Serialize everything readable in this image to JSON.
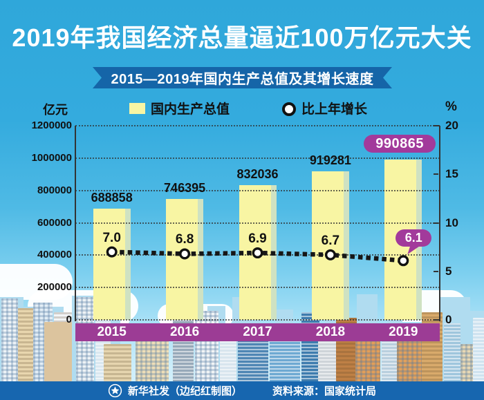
{
  "infographic": {
    "title": "2019年我国经济总量逼近100万亿元大关",
    "subtitle": "2015—2019年国内生产总值及其增长速度",
    "left_axis_unit": "亿元",
    "right_axis_unit": "%",
    "legend": {
      "gdp": "国内生产总值",
      "growth": "比上年增长"
    },
    "footer": {
      "credit": "新华社发（边纪红制图）",
      "source": "资料来源：国家统计局"
    }
  },
  "chart_data": {
    "type": "bar+line combo",
    "title": "2015—2019年国内生产总值及其增长速度",
    "categories": [
      "2015",
      "2016",
      "2017",
      "2018",
      "2019"
    ],
    "series": [
      {
        "name": "国内生产总值",
        "type": "bar",
        "axis": "left",
        "unit": "亿元",
        "values": [
          688858,
          746395,
          832036,
          919281,
          990865
        ],
        "labels": [
          "688858",
          "746395",
          "832036",
          "919281",
          "990865"
        ],
        "last_label_style": "magenta pill badge"
      },
      {
        "name": "比上年增长",
        "type": "line",
        "axis": "right",
        "unit": "%",
        "values": [
          7.0,
          6.8,
          6.9,
          6.7,
          6.1
        ],
        "labels": [
          "7.0",
          "6.8",
          "6.9",
          "6.7",
          "6.1"
        ],
        "last_label_style": "magenta speech bubble"
      }
    ],
    "left_axis": {
      "title": "亿元",
      "min": 0,
      "max": 1200000,
      "tick_step": 200000,
      "tick_labels": [
        "1200000",
        "1000000",
        "800000",
        "600000",
        "400000",
        "200000",
        "0"
      ]
    },
    "right_axis": {
      "title": "%",
      "min": 0,
      "max": 20,
      "tick_step": 5,
      "tick_labels": [
        "20",
        "15",
        "10",
        "5",
        "0"
      ]
    },
    "grid": "horizontal dotted lines at each left-axis tick",
    "legend_position": "top",
    "x_axis_style": "purple band with white year labels",
    "line_style": "thick black dashed line with white circle markers",
    "colors": {
      "bar_fill": "#f8f5a3",
      "bar_side_shade": "#cfe2c2",
      "line": "#171717",
      "marker_fill": "#ffffff",
      "badge_magenta": "#a23a9b",
      "x_band_purple": "#9c3c95",
      "banner_blue": "#1565a8",
      "footer_blue": "#1766af",
      "sky_top": "#2fa7da",
      "sky_horizon": "#cdeefb",
      "text_dark": "#111111",
      "text_white": "#ffffff"
    }
  }
}
